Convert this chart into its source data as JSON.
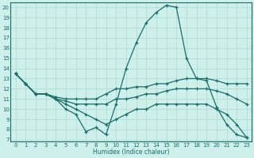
{
  "xlabel": "Humidex (Indice chaleur)",
  "bg_color": "#cdf0ea",
  "grid_color": "#b0d8d0",
  "line_color": "#1a6b6b",
  "xlim": [
    -0.5,
    23.5
  ],
  "ylim": [
    6.8,
    20.5
  ],
  "yticks": [
    7,
    8,
    9,
    10,
    11,
    12,
    13,
    14,
    15,
    16,
    17,
    18,
    19,
    20
  ],
  "xticks": [
    0,
    1,
    2,
    3,
    4,
    5,
    6,
    7,
    8,
    9,
    10,
    11,
    12,
    13,
    14,
    15,
    16,
    17,
    18,
    19,
    20,
    21,
    22,
    23
  ],
  "series1_x": [
    0,
    1,
    2,
    3,
    4,
    5,
    6,
    7,
    8,
    9,
    10,
    11,
    12,
    13,
    14,
    15,
    16,
    17,
    18,
    19,
    20,
    21,
    22,
    23
  ],
  "series1_y": [
    13.5,
    12.5,
    11.5,
    11.5,
    11.0,
    10.0,
    9.5,
    7.8,
    8.2,
    7.5,
    10.5,
    14.0,
    16.5,
    18.5,
    19.5,
    20.2,
    20.0,
    15.0,
    13.0,
    12.8,
    10.2,
    8.5,
    7.5,
    7.2
  ],
  "series2_x": [
    0,
    1,
    2,
    3,
    4,
    5,
    6,
    7,
    8,
    9,
    10,
    11,
    12,
    13,
    14,
    15,
    16,
    17,
    18,
    19,
    20,
    21,
    22,
    23
  ],
  "series2_y": [
    13.5,
    12.5,
    11.5,
    11.5,
    11.2,
    11.0,
    11.0,
    11.0,
    11.0,
    11.5,
    12.0,
    12.0,
    12.2,
    12.2,
    12.5,
    12.5,
    12.8,
    13.0,
    13.0,
    13.0,
    12.8,
    12.5,
    12.5,
    12.5
  ],
  "series3_x": [
    0,
    1,
    2,
    3,
    4,
    5,
    6,
    7,
    8,
    9,
    10,
    11,
    12,
    13,
    14,
    15,
    16,
    17,
    18,
    19,
    20,
    21,
    22,
    23
  ],
  "series3_y": [
    13.5,
    12.5,
    11.5,
    11.5,
    11.0,
    10.8,
    10.5,
    10.5,
    10.5,
    10.5,
    11.0,
    11.0,
    11.2,
    11.5,
    11.5,
    11.8,
    12.0,
    12.0,
    12.0,
    12.0,
    11.8,
    11.5,
    11.0,
    10.5
  ],
  "series4_x": [
    0,
    1,
    2,
    3,
    4,
    5,
    6,
    7,
    8,
    9,
    10,
    11,
    12,
    13,
    14,
    15,
    16,
    17,
    18,
    19,
    20,
    21,
    22,
    23
  ],
  "series4_y": [
    13.5,
    12.5,
    11.5,
    11.5,
    11.0,
    10.5,
    10.0,
    9.5,
    9.0,
    8.5,
    9.0,
    9.5,
    10.0,
    10.0,
    10.5,
    10.5,
    10.5,
    10.5,
    10.5,
    10.5,
    10.0,
    9.5,
    8.5,
    7.2
  ]
}
